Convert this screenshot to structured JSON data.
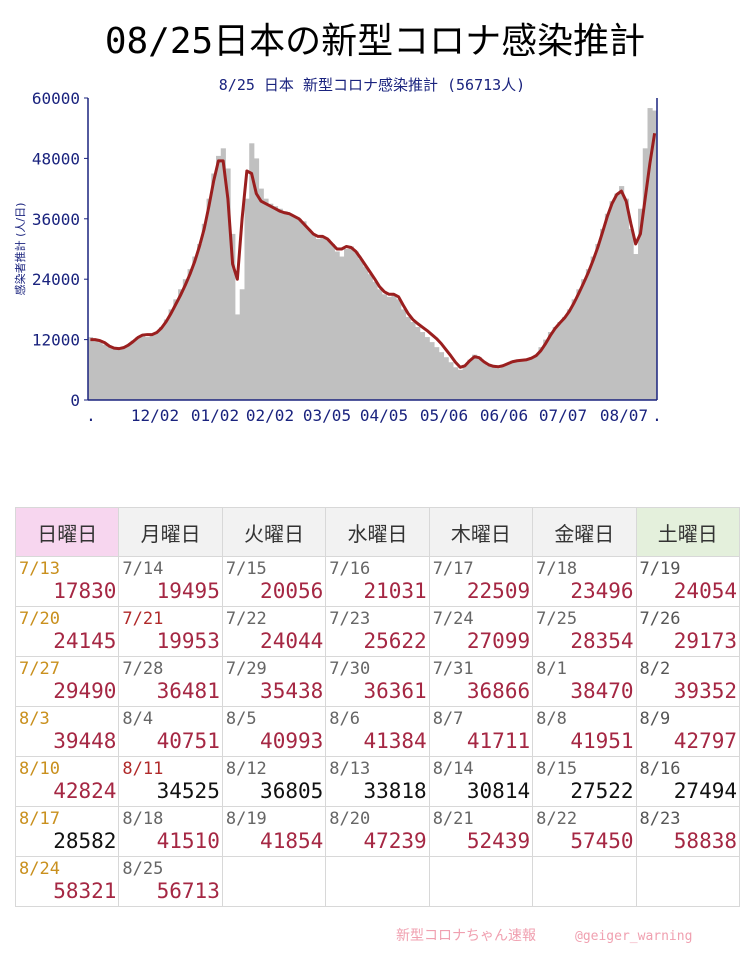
{
  "page_title": "08/25日本の新型コロナ感染推計",
  "chart_data": {
    "type": "bar",
    "title": "8/25 日本 新型コロナ感染推計 (56713人)",
    "ylabel": "感染者推計 (人/日)",
    "xlabel": "",
    "ylim": [
      0,
      60000
    ],
    "y_ticks": [
      "0",
      "12000",
      "24000",
      "36000",
      "48000",
      "60000"
    ],
    "x_ticks": [
      ".",
      "12/02",
      "01/02",
      "02/02",
      "03/05",
      "04/05",
      "05/06",
      "06/06",
      "07/07",
      "08/07",
      "."
    ],
    "grid": false,
    "series": [
      {
        "name": "",
        "kind": "bar",
        "color": "#c0c0c0",
        "values": [
          12500,
          12000,
          11500,
          11000,
          10500,
          10200,
          10000,
          10400,
          11000,
          11800,
          12500,
          13000,
          12500,
          13000,
          13500,
          14500,
          16000,
          18000,
          20000,
          22000,
          24000,
          26000,
          28500,
          31000,
          35000,
          40000,
          45000,
          48500,
          50000,
          46000,
          33000,
          17000,
          22000,
          40000,
          51000,
          48000,
          42000,
          40000,
          39000,
          38500,
          38000,
          37500,
          37000,
          36500,
          36000,
          35500,
          34000,
          33000,
          32000,
          32500,
          32000,
          31000,
          29500,
          28500,
          30000,
          30500,
          29500,
          28000,
          26500,
          25000,
          23500,
          22000,
          21000,
          20500,
          21000,
          20000,
          18000,
          16500,
          15500,
          14500,
          13500,
          12500,
          11500,
          10500,
          9500,
          8500,
          7500,
          6500,
          6000,
          7000,
          8000,
          9000,
          8500,
          7500,
          6800,
          6500,
          6300,
          6700,
          7200,
          7800,
          7900,
          7800,
          8000,
          8500,
          9000,
          10500,
          12000,
          13500,
          14500,
          15500,
          16500,
          18000,
          20000,
          22000,
          24000,
          26000,
          28500,
          31000,
          34000,
          37000,
          39500,
          41000,
          42500,
          40000,
          34000,
          29000,
          38000,
          50000,
          58000,
          57500
        ]
      },
      {
        "name": "",
        "kind": "line",
        "color": "#9a1f1f",
        "values": [
          12000,
          12000,
          11800,
          11400,
          10700,
          10300,
          10200,
          10400,
          10900,
          11600,
          12400,
          12900,
          13000,
          13000,
          13400,
          14300,
          15600,
          17200,
          19000,
          20800,
          22800,
          25000,
          27500,
          30500,
          34000,
          38500,
          43500,
          47500,
          47500,
          40000,
          27000,
          24000,
          36000,
          45500,
          45000,
          41000,
          39500,
          39000,
          38500,
          38000,
          37500,
          37200,
          37000,
          36500,
          36000,
          35000,
          34000,
          33000,
          32500,
          32500,
          32000,
          31000,
          30000,
          30000,
          30500,
          30300,
          29500,
          28200,
          26800,
          25400,
          24000,
          22500,
          21500,
          21000,
          21000,
          20500,
          18800,
          17200,
          16000,
          15200,
          14500,
          13800,
          13000,
          12200,
          11200,
          10000,
          8800,
          7500,
          6500,
          6800,
          7800,
          8600,
          8400,
          7600,
          7000,
          6700,
          6600,
          6800,
          7200,
          7600,
          7800,
          7900,
          8000,
          8300,
          8800,
          9800,
          11200,
          12800,
          14200,
          15300,
          16300,
          17600,
          19300,
          21200,
          23200,
          25300,
          27700,
          30300,
          33300,
          36400,
          39000,
          40800,
          41500,
          39500,
          35000,
          31000,
          33000,
          40000,
          47000,
          53000
        ]
      }
    ]
  },
  "calendar": {
    "headers": [
      "日曜日",
      "月曜日",
      "火曜日",
      "水曜日",
      "木曜日",
      "金曜日",
      "土曜日"
    ],
    "rows": [
      [
        {
          "d": "7/13",
          "v": "17830",
          "dc": "sun",
          "vc": "red"
        },
        {
          "d": "7/14",
          "v": "19495",
          "dc": "",
          "vc": "red"
        },
        {
          "d": "7/15",
          "v": "20056",
          "dc": "",
          "vc": "red"
        },
        {
          "d": "7/16",
          "v": "21031",
          "dc": "",
          "vc": "red"
        },
        {
          "d": "7/17",
          "v": "22509",
          "dc": "",
          "vc": "red"
        },
        {
          "d": "7/18",
          "v": "23496",
          "dc": "",
          "vc": "red"
        },
        {
          "d": "7/19",
          "v": "24054",
          "dc": "sat",
          "vc": "red"
        }
      ],
      [
        {
          "d": "7/20",
          "v": "24145",
          "dc": "sun",
          "vc": "red"
        },
        {
          "d": "7/21",
          "v": "19953",
          "dc": "hol",
          "vc": "red"
        },
        {
          "d": "7/22",
          "v": "24044",
          "dc": "",
          "vc": "red"
        },
        {
          "d": "7/23",
          "v": "25622",
          "dc": "",
          "vc": "red"
        },
        {
          "d": "7/24",
          "v": "27099",
          "dc": "",
          "vc": "red"
        },
        {
          "d": "7/25",
          "v": "28354",
          "dc": "",
          "vc": "red"
        },
        {
          "d": "7/26",
          "v": "29173",
          "dc": "sat",
          "vc": "red"
        }
      ],
      [
        {
          "d": "7/27",
          "v": "29490",
          "dc": "sun",
          "vc": "red"
        },
        {
          "d": "7/28",
          "v": "36481",
          "dc": "",
          "vc": "red"
        },
        {
          "d": "7/29",
          "v": "35438",
          "dc": "",
          "vc": "red"
        },
        {
          "d": "7/30",
          "v": "36361",
          "dc": "",
          "vc": "red"
        },
        {
          "d": "7/31",
          "v": "36866",
          "dc": "",
          "vc": "red"
        },
        {
          "d": "8/1",
          "v": "38470",
          "dc": "",
          "vc": "red"
        },
        {
          "d": "8/2",
          "v": "39352",
          "dc": "sat",
          "vc": "red"
        }
      ],
      [
        {
          "d": "8/3",
          "v": "39448",
          "dc": "sun",
          "vc": "red"
        },
        {
          "d": "8/4",
          "v": "40751",
          "dc": "",
          "vc": "red"
        },
        {
          "d": "8/5",
          "v": "40993",
          "dc": "",
          "vc": "red"
        },
        {
          "d": "8/6",
          "v": "41384",
          "dc": "",
          "vc": "red"
        },
        {
          "d": "8/7",
          "v": "41711",
          "dc": "",
          "vc": "red"
        },
        {
          "d": "8/8",
          "v": "41951",
          "dc": "",
          "vc": "red"
        },
        {
          "d": "8/9",
          "v": "42797",
          "dc": "sat",
          "vc": "red"
        }
      ],
      [
        {
          "d": "8/10",
          "v": "42824",
          "dc": "sun",
          "vc": "red"
        },
        {
          "d": "8/11",
          "v": "34525",
          "dc": "hol",
          "vc": "black"
        },
        {
          "d": "8/12",
          "v": "36805",
          "dc": "",
          "vc": "black"
        },
        {
          "d": "8/13",
          "v": "33818",
          "dc": "",
          "vc": "black"
        },
        {
          "d": "8/14",
          "v": "30814",
          "dc": "",
          "vc": "black"
        },
        {
          "d": "8/15",
          "v": "27522",
          "dc": "",
          "vc": "black"
        },
        {
          "d": "8/16",
          "v": "27494",
          "dc": "sat",
          "vc": "black"
        }
      ],
      [
        {
          "d": "8/17",
          "v": "28582",
          "dc": "sun",
          "vc": "black"
        },
        {
          "d": "8/18",
          "v": "41510",
          "dc": "",
          "vc": "red"
        },
        {
          "d": "8/19",
          "v": "41854",
          "dc": "",
          "vc": "red"
        },
        {
          "d": "8/20",
          "v": "47239",
          "dc": "",
          "vc": "red"
        },
        {
          "d": "8/21",
          "v": "52439",
          "dc": "",
          "vc": "red"
        },
        {
          "d": "8/22",
          "v": "57450",
          "dc": "",
          "vc": "red"
        },
        {
          "d": "8/23",
          "v": "58838",
          "dc": "sat",
          "vc": "red"
        }
      ],
      [
        {
          "d": "8/24",
          "v": "58321",
          "dc": "sun",
          "vc": "red"
        },
        {
          "d": "8/25",
          "v": "56713",
          "dc": "",
          "vc": "red"
        },
        null,
        null,
        null,
        null,
        null
      ]
    ]
  },
  "watermark": {
    "left": "新型コロナちゃん速報",
    "right": "@geiger_warning"
  }
}
